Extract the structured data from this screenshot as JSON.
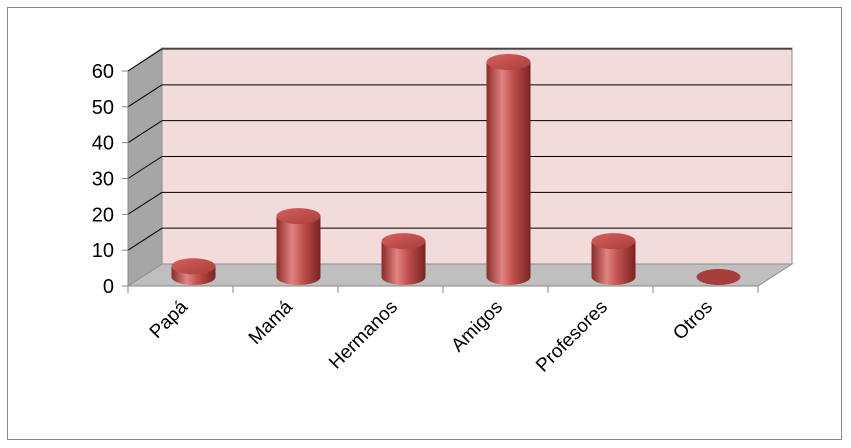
{
  "chart_data": {
    "type": "bar",
    "style": "3d-cylinder",
    "categories": [
      "Papá",
      "Mamá",
      "Hermanos",
      "Amigos",
      "Profesores",
      "Otros"
    ],
    "values": [
      3,
      17,
      10,
      60,
      10,
      0
    ],
    "title": "",
    "xlabel": "",
    "ylabel": "",
    "ylim": [
      0,
      60
    ],
    "yticks": [
      "0",
      "10",
      "20",
      "30",
      "40",
      "50",
      "60"
    ],
    "grid": true,
    "legend": "none",
    "colors": {
      "bar": "#c0504d",
      "bar_dark": "#8b2b29",
      "bar_light": "#e99a97",
      "back_wall": "#f2dcdb",
      "side_wall": "#a6a6a6",
      "floor": "#bfbfbf",
      "gridline": "#000000"
    }
  }
}
